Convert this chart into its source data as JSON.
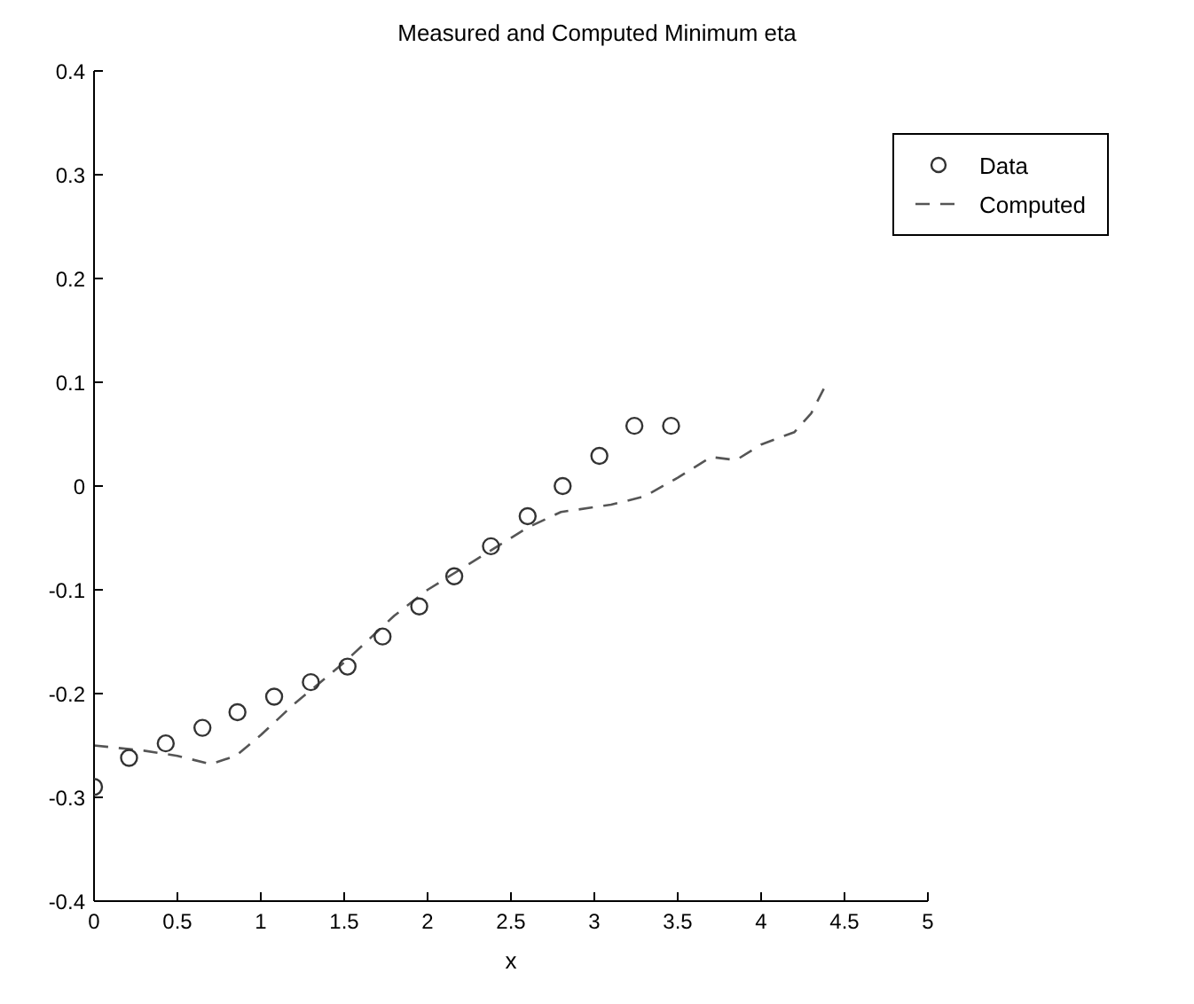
{
  "chart_data": {
    "type": "line",
    "title": "Measured and Computed Minimum eta",
    "xlabel": "x",
    "xlim": [
      0,
      5
    ],
    "xticks": [
      0,
      0.5,
      1,
      1.5,
      2,
      2.5,
      3,
      3.5,
      4,
      4.5,
      5
    ],
    "ylim": [
      -0.4,
      0.4
    ],
    "yticks": [
      -0.4,
      -0.3,
      -0.2,
      -0.1,
      0,
      0.1,
      0.2,
      0.3,
      0.4
    ],
    "grid": false,
    "legend": "top right",
    "series": [
      {
        "name": "Data",
        "type": "scatter",
        "marker": "circle",
        "color": "#333333",
        "x": [
          0,
          0.21,
          0.43,
          0.65,
          0.86,
          1.08,
          1.3,
          1.52,
          1.73,
          1.95,
          2.16,
          2.38,
          2.6,
          2.81,
          3.03,
          3.24,
          3.46
        ],
        "values": [
          -0.29,
          -0.262,
          -0.248,
          -0.233,
          -0.218,
          -0.203,
          -0.189,
          -0.174,
          -0.145,
          -0.116,
          -0.087,
          -0.058,
          -0.029,
          0,
          0.029,
          0.058,
          0.058
        ]
      },
      {
        "name": "Computed",
        "marker": "none",
        "line_style": "dashed",
        "color": "#555555",
        "x": [
          0,
          0.3,
          0.5,
          0.7,
          0.85,
          1.0,
          1.2,
          1.5,
          1.8,
          2.0,
          2.3,
          2.6,
          2.8,
          3.1,
          3.3,
          3.5,
          3.7,
          3.85,
          4.0,
          4.2,
          4.3,
          4.38
        ],
        "values": [
          -0.25,
          -0.255,
          -0.26,
          -0.268,
          -0.26,
          -0.24,
          -0.21,
          -0.17,
          -0.125,
          -0.1,
          -0.07,
          -0.04,
          -0.025,
          -0.018,
          -0.01,
          0.008,
          0.028,
          0.025,
          0.04,
          0.052,
          0.07,
          0.095
        ]
      }
    ]
  }
}
